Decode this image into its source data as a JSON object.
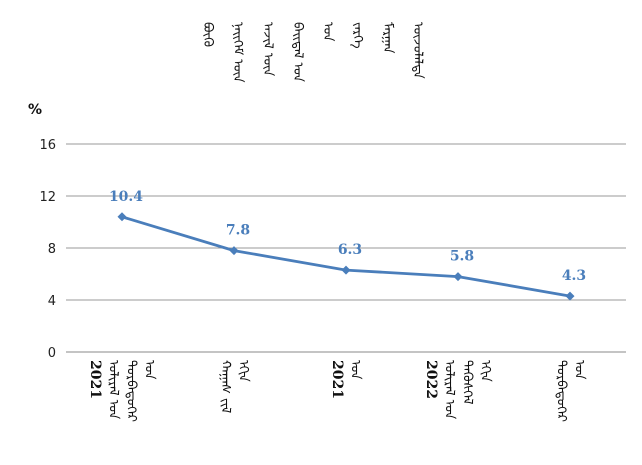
{
  "chart_data": {
    "type": "line",
    "title_lines": [
      "ᠪᠦᠬᠦ",
      "ᠨᠡᠢᠭᠡᠮ ᠦᠨ",
      "ᠠᠵᠢᠯ ᠦᠨ",
      "ᠪᠠᠢᠳᠠᠯ ᠤᠨ",
      "ᠤᠨ",
      "ᠵᠡᠷᠭᠡ",
      "ᠮᠠᠷᠭᠠᠨ",
      "ᠦᠵᠦᠯᠡᠯᠲᠡ"
    ],
    "ylabel": "%",
    "ylim": [
      0,
      16
    ],
    "yticks": [
      0,
      4,
      8,
      12,
      16
    ],
    "categories": [
      {
        "lines": [
          "ᠤᠨ",
          "ᠳᠤᠷᠪᠡᠳᠦᠭᠡᠷ",
          "ᠤᠯᠢᠷᠠᠯ ᠤᠨ"
        ],
        "year": "2021"
      },
      {
        "lines": [
          "ᠡᠬᠢᠨ",
          "ᠬᠠᠭᠠᠰ ᠵᠢᠯ"
        ],
        "year": ""
      },
      {
        "lines": [
          "ᠤᠨ"
        ],
        "year": "2021"
      },
      {
        "lines": [
          "ᠡᠬᠢᠨ",
          "ᠲᠡᠭᠦᠰᠭᠡᠯ",
          "ᠤᠯᠢᠷᠠᠯ ᠤᠨ"
        ],
        "year": "2022"
      },
      {
        "lines": [
          "ᠤᠨ",
          "ᠳᠤᠷᠪᠡᠳᠦᠭᠡᠷ"
        ],
        "year": ""
      }
    ],
    "series": [
      {
        "values": [
          10.4,
          7.8,
          6.3,
          5.8,
          4.3
        ]
      }
    ],
    "data_labels": [
      "10.4",
      "7.8",
      "6.3",
      "5.8",
      "4.3"
    ],
    "line_color": "#4a7ebb",
    "label_color": "#4a7ebb",
    "grid": true
  }
}
